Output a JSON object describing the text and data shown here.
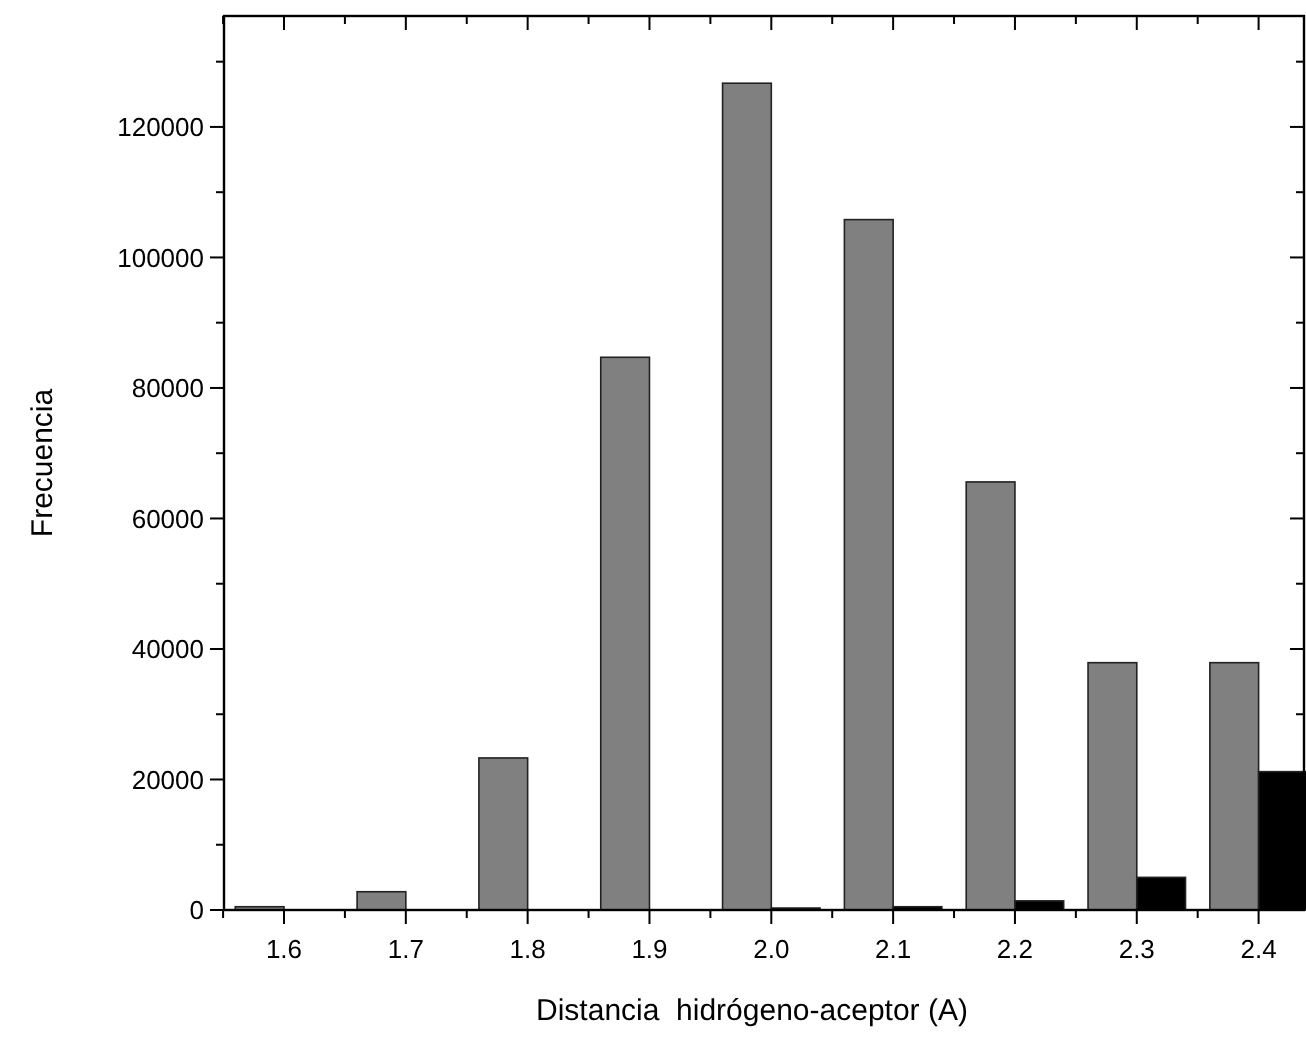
{
  "chart_data": {
    "type": "bar",
    "xlabel": "Distancia  hidrógeno-aceptor (A)",
    "ylabel": "Frecuencia",
    "categories": [
      "1.6",
      "1.7",
      "1.8",
      "1.9",
      "2.0",
      "2.1",
      "2.2",
      "2.3",
      "2.4"
    ],
    "series": [
      {
        "color": "#808080",
        "values": [
          500,
          2800,
          23300,
          84700,
          126700,
          105800,
          65600,
          37900,
          37900
        ]
      },
      {
        "color": "#000000",
        "values": [
          0,
          0,
          0,
          0,
          300,
          500,
          1400,
          5000,
          21200
        ]
      }
    ],
    "ylim": [
      0,
      137000
    ],
    "yticks": [
      0,
      {
        "value": 10000,
        "label": null
      },
      20000,
      {
        "value": 30000,
        "label": null
      },
      40000,
      {
        "value": 50000,
        "label": null
      },
      60000,
      {
        "value": 70000,
        "label": null
      },
      80000,
      {
        "value": 90000,
        "label": null
      },
      100000,
      {
        "value": 110000,
        "label": null
      },
      120000,
      {
        "value": 130000,
        "label": null
      }
    ],
    "grid": false
  }
}
